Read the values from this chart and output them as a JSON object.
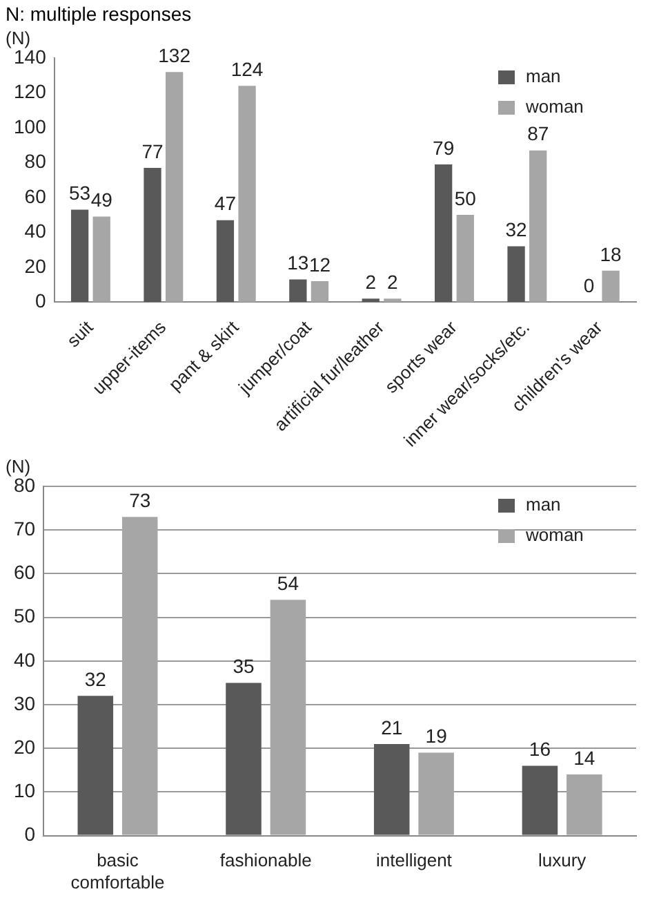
{
  "chart_data": [
    {
      "type": "bar",
      "title": "N: multiple responses",
      "ylabel": "(N)",
      "categories": [
        "suit",
        "upper-items",
        "pant & skirt",
        "jumper/coat",
        "artificial fur/leather",
        "sports wear",
        "inner wear/socks/etc.",
        "children's wear"
      ],
      "series": [
        {
          "name": "man",
          "color": "#595959",
          "values": [
            53,
            77,
            47,
            13,
            2,
            79,
            32,
            0
          ]
        },
        {
          "name": "woman",
          "color": "#a6a6a6",
          "values": [
            49,
            132,
            124,
            12,
            2,
            50,
            87,
            18
          ]
        }
      ],
      "ylim": [
        0,
        140
      ],
      "yticks": [
        0,
        20,
        40,
        60,
        80,
        100,
        120,
        140
      ],
      "grid": false,
      "legend": "top right",
      "data_labels": true
    },
    {
      "type": "bar",
      "ylabel": "(N)",
      "categories": [
        "basic comfortable",
        "fashionable",
        "intelligent",
        "luxury"
      ],
      "series": [
        {
          "name": "man",
          "color": "#595959",
          "values": [
            32,
            35,
            21,
            16
          ]
        },
        {
          "name": "woman",
          "color": "#a6a6a6",
          "values": [
            73,
            54,
            19,
            14
          ]
        }
      ],
      "ylim": [
        0,
        80
      ],
      "yticks": [
        0,
        10,
        20,
        30,
        40,
        50,
        60,
        70,
        80
      ],
      "grid": "y",
      "legend": "top right",
      "data_labels": true
    }
  ]
}
